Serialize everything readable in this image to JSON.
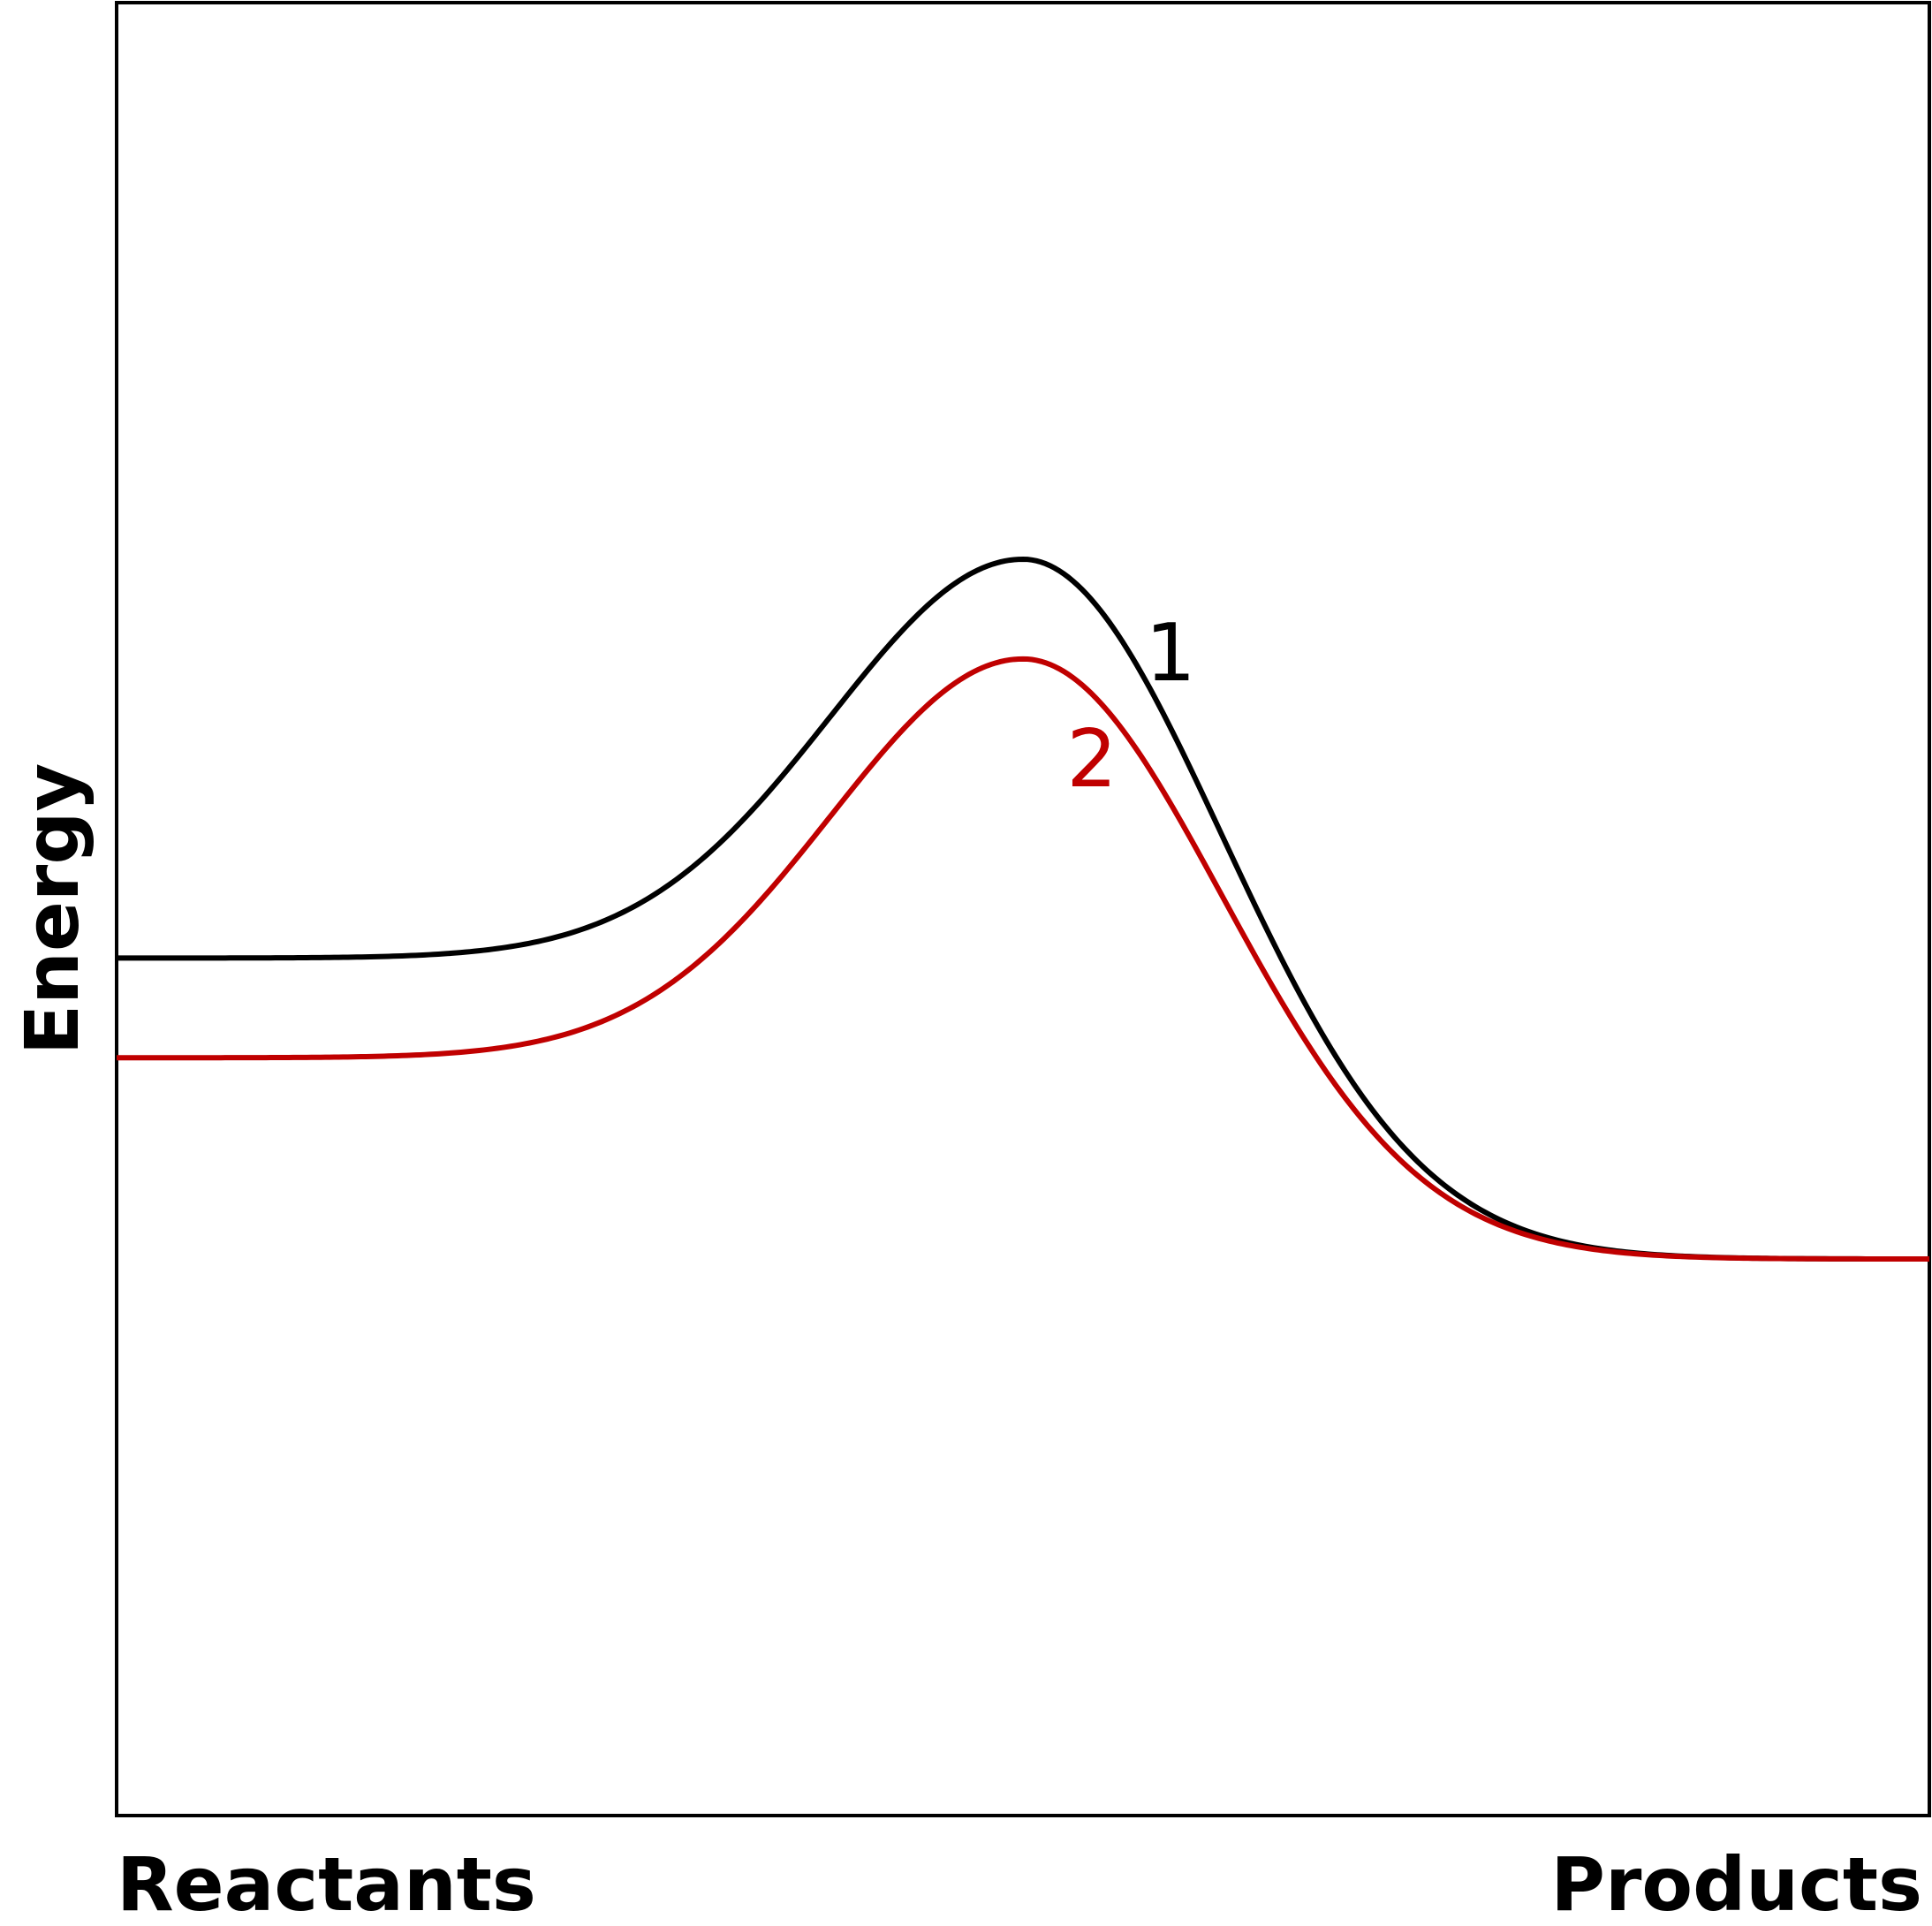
{
  "chart_data": {
    "type": "line",
    "title": "",
    "xlabel_left": "Reactants",
    "xlabel_right": "Products",
    "ylabel": "Energy",
    "xlim": [
      0,
      1
    ],
    "ylim": [
      0,
      1
    ],
    "grid": false,
    "legend": "none",
    "series": [
      {
        "name": "1",
        "color": "#000000",
        "reactant_level": 0.473,
        "peak_x": 0.5,
        "peak_level": 0.693,
        "product_level": 0.307
      },
      {
        "name": "2",
        "color": "#c00000",
        "reactant_level": 0.418,
        "peak_x": 0.5,
        "peak_level": 0.638,
        "product_level": 0.307
      }
    ]
  }
}
